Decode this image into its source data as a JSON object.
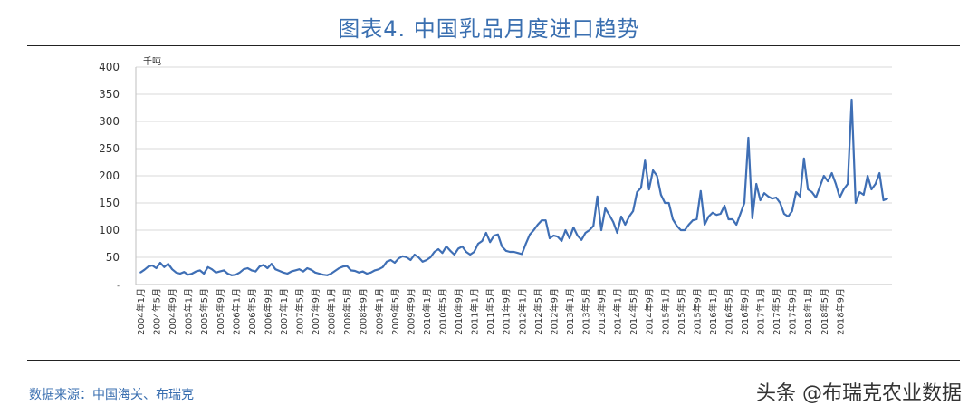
{
  "title": "图表4.   中国乳品月度进口趋势",
  "source": "数据来源：中国海关、布瑞克",
  "watermark": "头条 @布瑞克农业数据",
  "chart_data": {
    "type": "line",
    "ylabel": "千吨",
    "ylim": [
      0,
      400
    ],
    "yticks": [
      0,
      50,
      100,
      150,
      200,
      250,
      300,
      350,
      400
    ],
    "grid": true,
    "line_color": "#3f6fb5",
    "x_tick_labels": [
      "2004年1月",
      "2004年5月",
      "2004年9月",
      "2005年1月",
      "2005年5月",
      "2005年9月",
      "2006年1月",
      "2006年5月",
      "2006年9月",
      "2007年1月",
      "2007年5月",
      "2007年9月",
      "2008年1月",
      "2008年5月",
      "2008年9月",
      "2009年1月",
      "2009年5月",
      "2009年9月",
      "2010年1月",
      "2010年5月",
      "2010年9月",
      "2011年1月",
      "2011年5月",
      "2011年9月",
      "2012年1月",
      "2012年5月",
      "2012年9月",
      "2013年1月",
      "2013年5月",
      "2013年9月",
      "2014年1月",
      "2014年5月",
      "2014年9月",
      "2015年1月",
      "2015年5月",
      "2015年9月",
      "2016年1月",
      "2016年5月",
      "2016年9月",
      "2017年1月",
      "2017年5月",
      "2017年9月",
      "2018年1月",
      "2018年5月",
      "2018年9月"
    ],
    "series": [
      {
        "values": [
          22,
          27,
          33,
          35,
          30,
          40,
          32,
          38,
          28,
          22,
          20,
          23,
          18,
          20,
          24,
          26,
          20,
          32,
          28,
          22,
          24,
          26,
          20,
          17,
          18,
          22,
          28,
          30,
          26,
          24,
          33,
          36,
          30,
          38,
          28,
          25,
          22,
          20,
          24,
          26,
          28,
          24,
          30,
          27,
          22,
          20,
          18,
          17,
          20,
          25,
          30,
          33,
          34,
          26,
          25,
          22,
          24,
          20,
          22,
          26,
          28,
          32,
          42,
          45,
          40,
          48,
          52,
          50,
          45,
          55,
          50,
          42,
          45,
          50,
          60,
          65,
          58,
          70,
          62,
          55,
          66,
          70,
          60,
          55,
          60,
          75,
          80,
          95,
          78,
          90,
          92,
          70,
          62,
          60,
          60,
          58,
          56,
          75,
          92,
          100,
          110,
          118,
          118,
          85,
          90,
          88,
          80,
          100,
          85,
          105,
          90,
          82,
          95,
          100,
          108,
          162,
          100,
          140,
          128,
          115,
          95,
          125,
          110,
          125,
          135,
          170,
          178,
          228,
          175,
          210,
          200,
          165,
          150,
          150,
          120,
          108,
          100,
          100,
          110,
          118,
          120,
          172,
          110,
          125,
          132,
          128,
          130,
          145,
          120,
          120,
          110,
          130,
          150,
          270,
          122,
          185,
          155,
          168,
          162,
          158,
          160,
          150,
          130,
          125,
          135,
          170,
          162,
          232,
          175,
          170,
          160,
          180,
          200,
          190,
          205,
          185,
          160,
          175,
          185,
          340,
          150,
          170,
          165,
          200,
          175,
          185,
          205,
          155,
          158
        ]
      }
    ]
  }
}
